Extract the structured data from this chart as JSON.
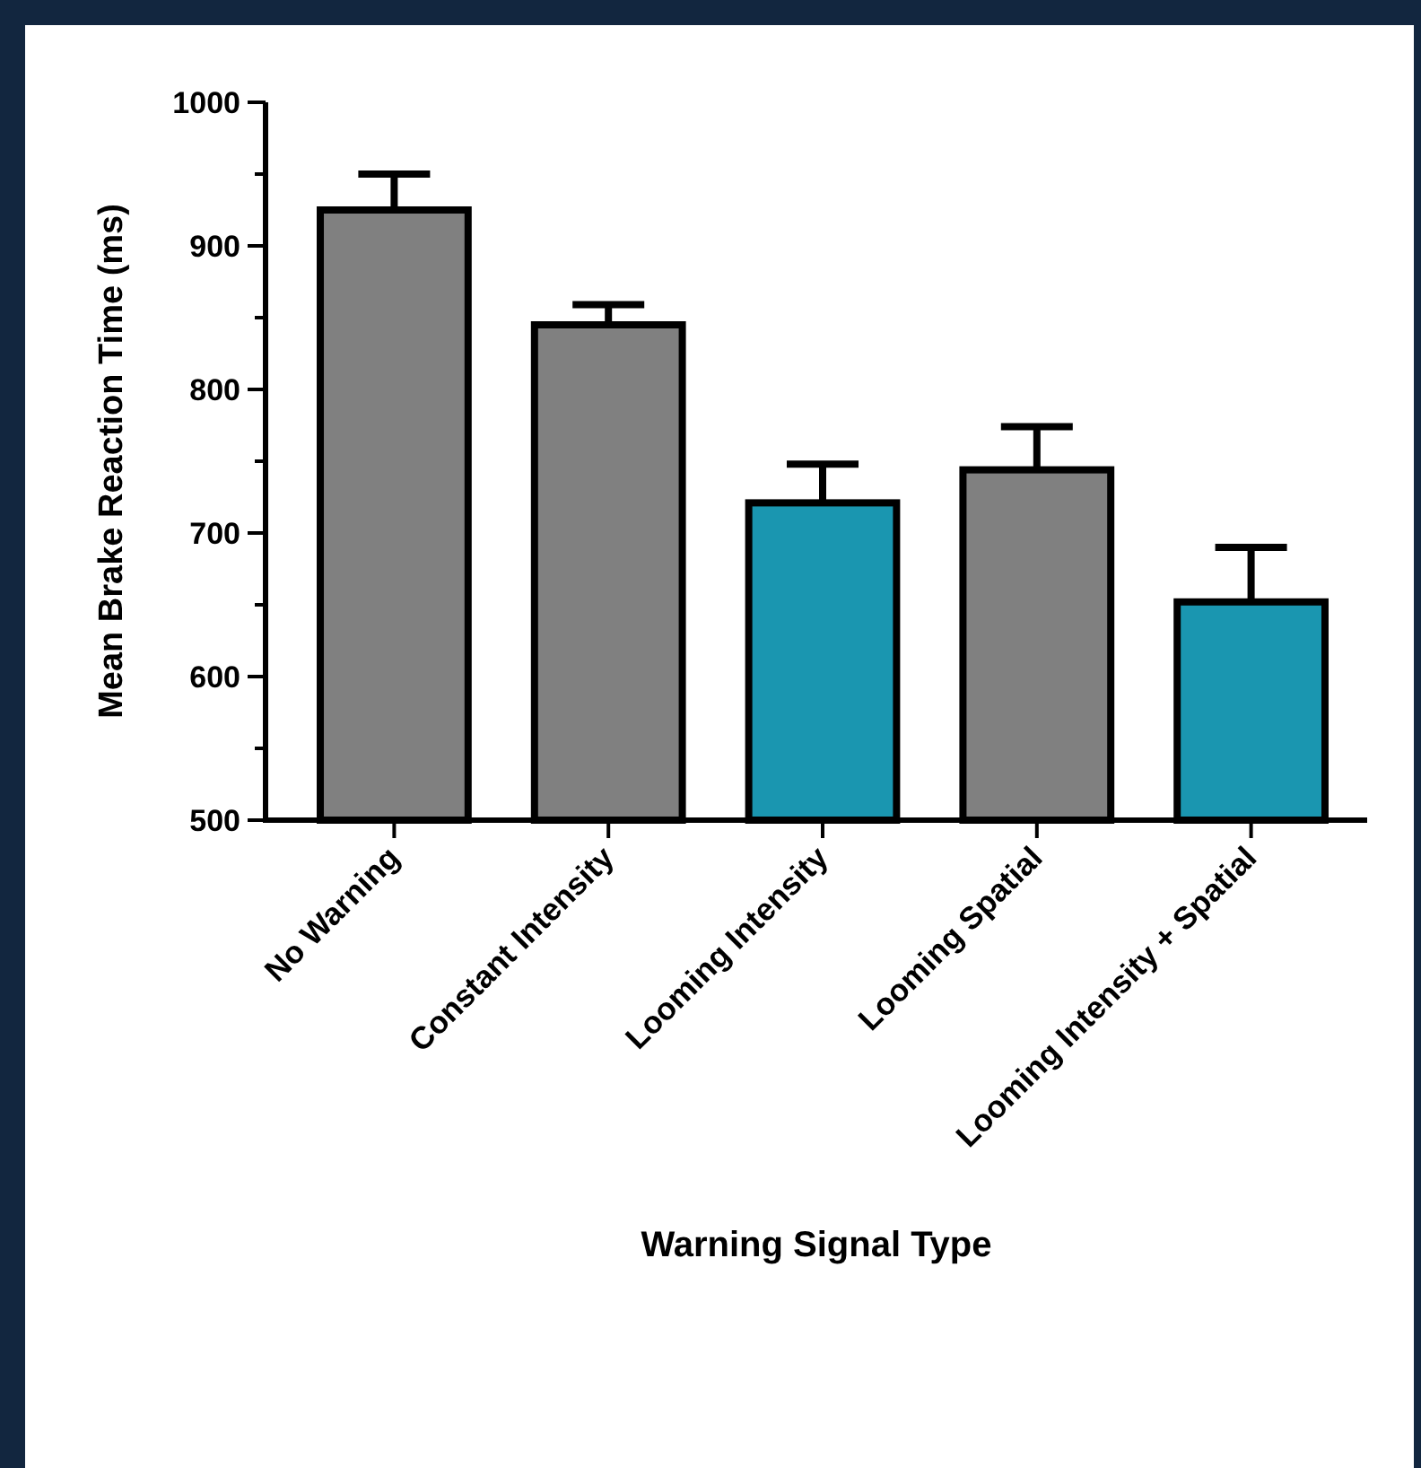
{
  "chart_data": {
    "type": "bar",
    "xlabel": "Warning Signal Type",
    "ylabel": "Mean Brake Reaction Time (ms)",
    "categories": [
      "No Warning",
      "Constant Intensity",
      "Looming Intensity",
      "Looming Spatial",
      "Looming Intensity + Spatial"
    ],
    "values": [
      925,
      845,
      721,
      744,
      652
    ],
    "colors": [
      "#808080",
      "#808080",
      "#1a96b0",
      "#808080",
      "#1a96b0"
    ],
    "errors": [
      [
        925,
        950
      ],
      [
        845,
        859
      ],
      [
        721,
        748
      ],
      [
        744,
        774
      ],
      [
        652,
        690
      ]
    ],
    "ylim": [
      500,
      1000
    ],
    "yticks": [
      500,
      {
        "value": 550,
        "label": null
      },
      600,
      {
        "value": 650,
        "label": null
      },
      700,
      {
        "value": 750,
        "label": null
      },
      800,
      {
        "value": 850,
        "label": null
      },
      900,
      {
        "value": 950,
        "label": null
      },
      1000
    ],
    "grid": false
  }
}
